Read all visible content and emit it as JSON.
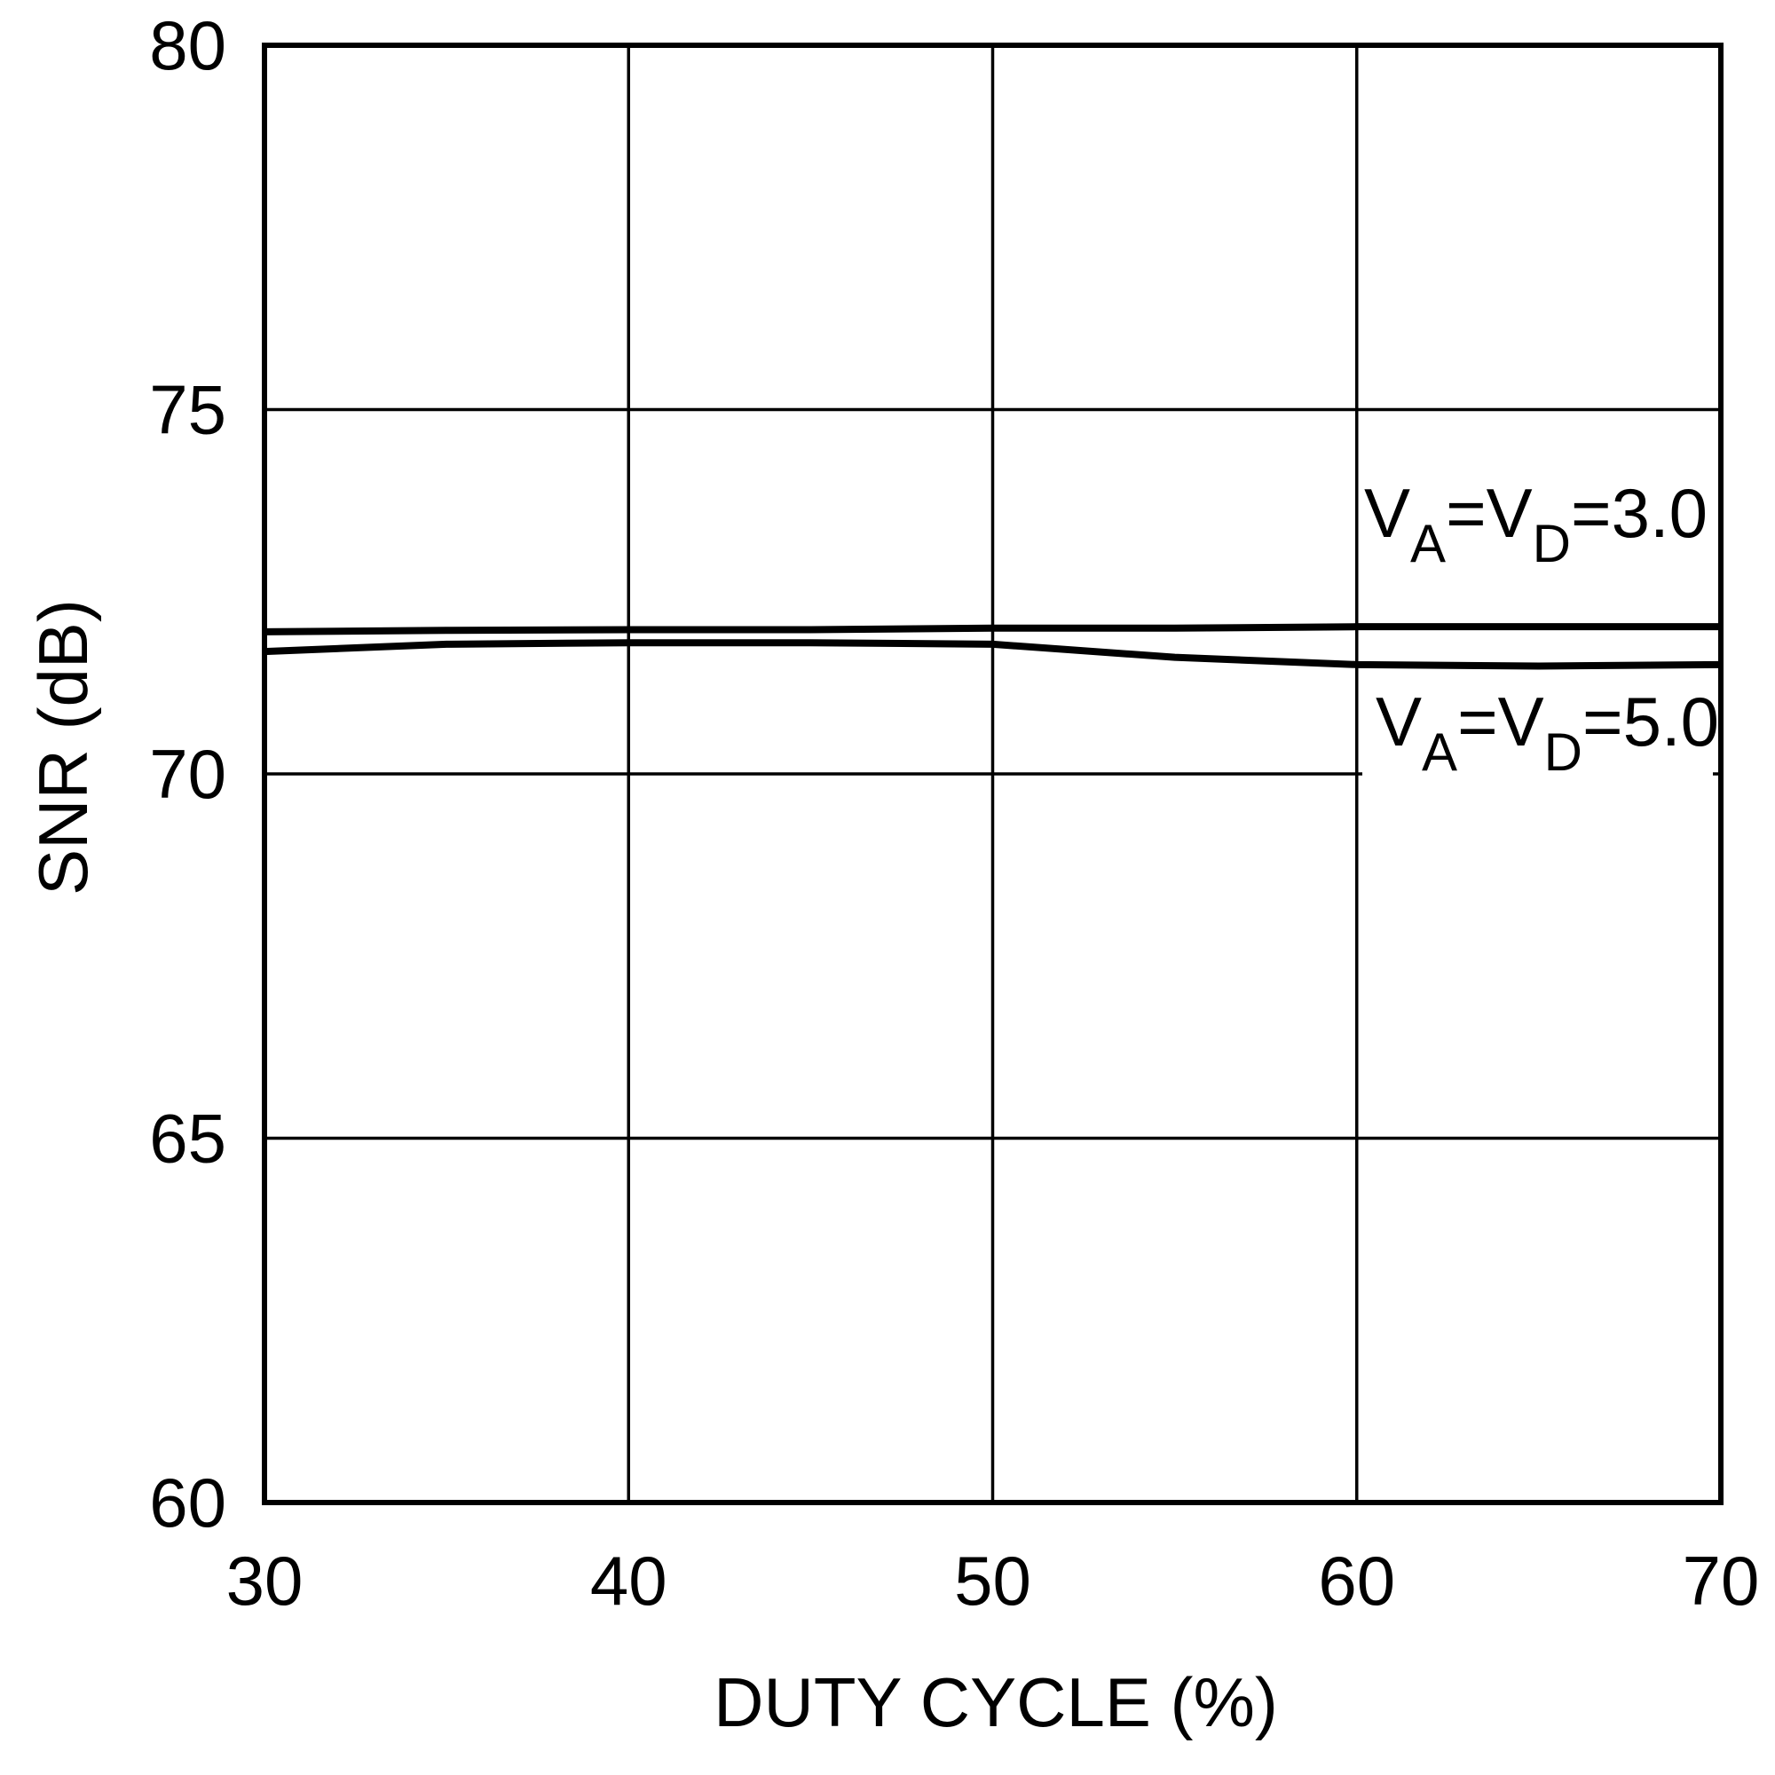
{
  "chart_data": {
    "type": "line",
    "x_label": "DUTY CYCLE (%)",
    "y_label": "SNR (dB)",
    "x": [
      30,
      35,
      40,
      45,
      50,
      55,
      60,
      65,
      70
    ],
    "series": [
      {
        "name": "VA=VD=3.0",
        "color": "#000000",
        "values": [
          71.95,
          71.97,
          71.98,
          71.98,
          72.0,
          72.0,
          72.02,
          72.02,
          72.02
        ]
      },
      {
        "name": "VA=VD=5.0",
        "color": "#000000",
        "values": [
          71.68,
          71.78,
          71.8,
          71.8,
          71.78,
          71.6,
          71.5,
          71.48,
          71.5
        ]
      }
    ],
    "xlim": [
      30,
      70
    ],
    "xticks": [
      30,
      40,
      50,
      60,
      70
    ],
    "ylim": [
      60,
      80
    ],
    "yticks": [
      60,
      65,
      70,
      75,
      80
    ],
    "grid": true
  }
}
